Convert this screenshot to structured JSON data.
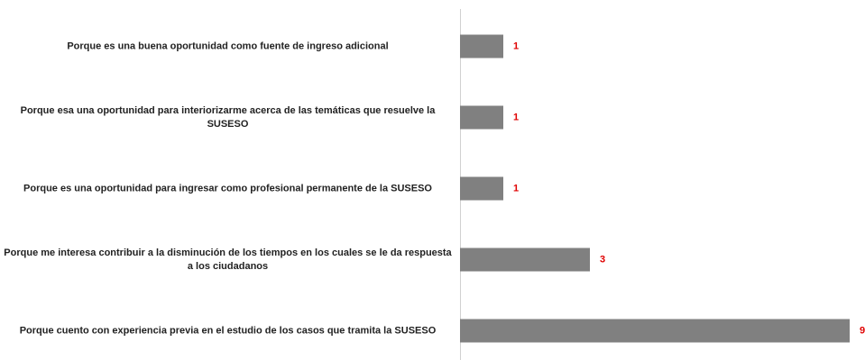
{
  "chart_data": {
    "type": "bar",
    "orientation": "horizontal",
    "categories": [
      "Porque es una buena oportunidad como fuente de ingreso adicional",
      "Porque esa una oportunidad para interiorizarme acerca de las temáticas que resuelve la SUSESO",
      "Porque es una oportunidad para ingresar como profesional permanente de la SUSESO",
      "Porque me interesa contribuir a la disminución de los tiempos en los cuales se le da respuesta a los ciudadanos",
      "Porque cuento con experiencia previa en el estudio de los casos que tramita la SUSESO"
    ],
    "values": [
      1,
      1,
      1,
      3,
      9
    ],
    "color": "#808080"
  }
}
